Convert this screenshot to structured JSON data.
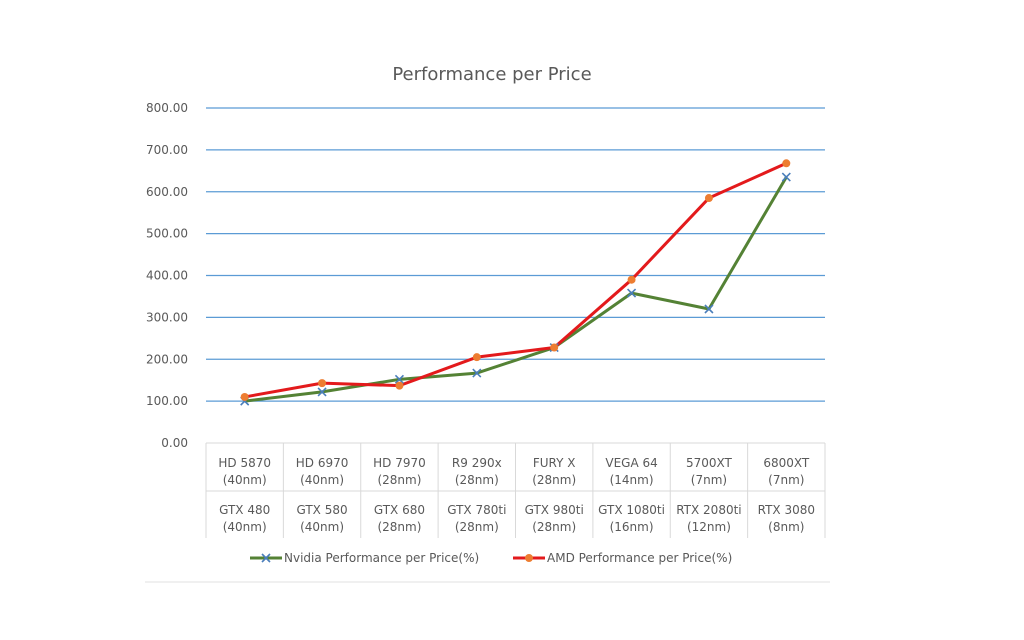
{
  "chart_data": {
    "type": "line",
    "title": "Performance per Price",
    "ylim": [
      0,
      800
    ],
    "yticks": [
      "0.00",
      "100.00",
      "200.00",
      "300.00",
      "400.00",
      "500.00",
      "600.00",
      "700.00",
      "800.00"
    ],
    "grid": true,
    "legend_position": "bottom",
    "categories": [
      {
        "amd": [
          "HD 5870",
          "(40nm)"
        ],
        "nvidia": [
          "GTX 480",
          "(40nm)"
        ]
      },
      {
        "amd": [
          "HD 6970",
          "(40nm)"
        ],
        "nvidia": [
          "GTX 580",
          "(40nm)"
        ]
      },
      {
        "amd": [
          "HD 7970",
          "(28nm)"
        ],
        "nvidia": [
          "GTX 680",
          "(28nm)"
        ]
      },
      {
        "amd": [
          "R9 290x",
          "(28nm)"
        ],
        "nvidia": [
          "GTX 780ti",
          "(28nm)"
        ]
      },
      {
        "amd": [
          "FURY X",
          "(28nm)"
        ],
        "nvidia": [
          "GTX 980ti",
          "(28nm)"
        ]
      },
      {
        "amd": [
          "VEGA 64",
          "(14nm)"
        ],
        "nvidia": [
          "GTX 1080ti",
          "(16nm)"
        ]
      },
      {
        "amd": [
          "5700XT",
          "(7nm)"
        ],
        "nvidia": [
          "RTX 2080ti",
          "(12nm)"
        ]
      },
      {
        "amd": [
          "6800XT",
          "(7nm)"
        ],
        "nvidia": [
          "RTX 3080",
          "(8nm)"
        ]
      }
    ],
    "series": [
      {
        "name": "Nvidia Performance per Price(%)",
        "color": "#548235",
        "marker": "x",
        "marker_color": "#4a7ebb",
        "values": [
          100,
          122,
          152,
          167,
          228,
          358,
          320,
          635
        ]
      },
      {
        "name": "AMD Performance per Price(%)",
        "color": "#e31a1c",
        "marker": "circle",
        "marker_color": "#ed7d31",
        "values": [
          110,
          143,
          137,
          205,
          228,
          390,
          585,
          668
        ]
      }
    ]
  }
}
